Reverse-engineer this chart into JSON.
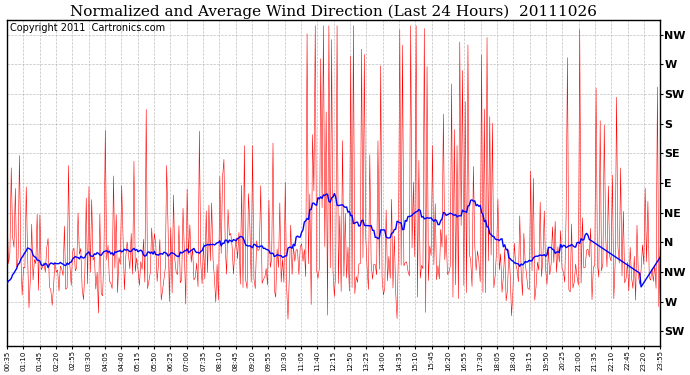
{
  "title": "Normalized and Average Wind Direction (Last 24 Hours)  20111026",
  "copyright": "Copyright 2011  Cartronics.com",
  "background_color": "#ffffff",
  "plot_background": "#ffffff",
  "grid_color": "#b0b0b0",
  "y_tick_labels": [
    "NW",
    "W",
    "SW",
    "S",
    "SE",
    "E",
    "NE",
    "N",
    "NW",
    "W",
    "SW"
  ],
  "y_tick_values": [
    10,
    9,
    8,
    7,
    6,
    5,
    4,
    3,
    2,
    1,
    0
  ],
  "ylim": [
    -0.5,
    10.5
  ],
  "x_tick_labels": [
    "00:35",
    "01:10",
    "01:45",
    "02:20",
    "02:55",
    "03:30",
    "04:05",
    "04:40",
    "05:15",
    "05:50",
    "06:25",
    "07:00",
    "07:35",
    "08:10",
    "08:45",
    "09:20",
    "09:55",
    "10:30",
    "11:05",
    "11:40",
    "12:15",
    "12:50",
    "13:25",
    "14:00",
    "14:35",
    "15:10",
    "15:45",
    "16:20",
    "16:55",
    "17:30",
    "18:05",
    "18:40",
    "19:15",
    "19:50",
    "20:25",
    "21:00",
    "21:35",
    "22:10",
    "22:45",
    "23:20",
    "23:55"
  ],
  "red_line_color": "#ff0000",
  "blue_line_color": "#0000ff",
  "title_fontsize": 11,
  "copyright_fontsize": 7
}
